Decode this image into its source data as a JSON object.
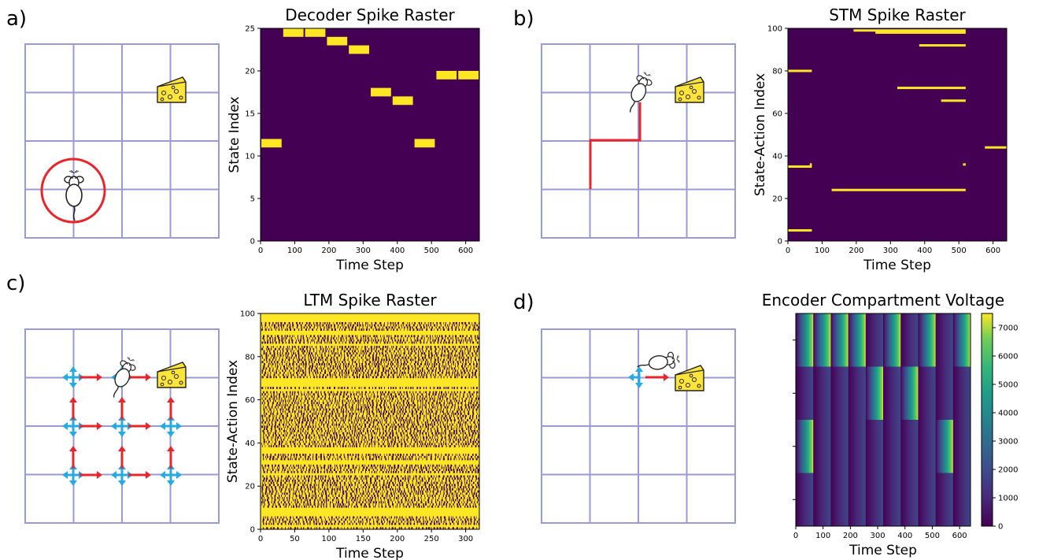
{
  "panels": {
    "a": {
      "label": "a)"
    },
    "b": {
      "label": "b)"
    },
    "c": {
      "label": "c)"
    },
    "d": {
      "label": "d)"
    }
  },
  "colors": {
    "grid": "#9a9ad4",
    "raster_bg": "#440154",
    "raster_spike": "#fde725",
    "path_red": "#e8252b",
    "arrow_blue": "#27a9e1",
    "cheese": "#fde43a"
  },
  "icons": [
    "mouse-icon",
    "cheese-icon"
  ],
  "chart_data": [
    {
      "type": "raster",
      "title": "Decoder Spike Raster",
      "xlabel": "Time Step",
      "ylabel": "State Index",
      "xlim": [
        0,
        640
      ],
      "ylim": [
        0,
        25
      ],
      "xticks": [
        0,
        100,
        200,
        300,
        400,
        500,
        600
      ],
      "yticks": [
        0,
        5,
        10,
        15,
        20,
        25
      ],
      "bin_width": 64,
      "spikes": [
        {
          "x": 0,
          "y": 11
        },
        {
          "x": 64,
          "y": 24
        },
        {
          "x": 128,
          "y": 24
        },
        {
          "x": 192,
          "y": 23
        },
        {
          "x": 256,
          "y": 22
        },
        {
          "x": 320,
          "y": 17
        },
        {
          "x": 384,
          "y": 16
        },
        {
          "x": 448,
          "y": 11
        },
        {
          "x": 512,
          "y": 19
        },
        {
          "x": 576,
          "y": 19
        }
      ]
    },
    {
      "type": "raster",
      "title": "STM Spike Raster",
      "xlabel": "Time Step",
      "ylabel": "State-Action Index",
      "xlim": [
        0,
        640
      ],
      "ylim": [
        0,
        100
      ],
      "xticks": [
        0,
        100,
        200,
        300,
        400,
        500,
        600
      ],
      "yticks": [
        0,
        20,
        40,
        60,
        80,
        100
      ],
      "spikes": [
        {
          "y": 99,
          "x_start": 192,
          "x_end": 520
        },
        {
          "y": 98,
          "x_start": 256,
          "x_end": 520
        },
        {
          "y": 92,
          "x_start": 384,
          "x_end": 520
        },
        {
          "y": 80,
          "x_start": 0,
          "x_end": 70
        },
        {
          "y": 72,
          "x_start": 320,
          "x_end": 520
        },
        {
          "y": 66,
          "x_start": 448,
          "x_end": 520
        },
        {
          "y": 44,
          "x_start": 576,
          "x_end": 640
        },
        {
          "y": 36,
          "x_start": 64,
          "x_end": 70
        },
        {
          "y": 36,
          "x_start": 512,
          "x_end": 520
        },
        {
          "y": 35,
          "x_start": 0,
          "x_end": 70
        },
        {
          "y": 24,
          "x_start": 128,
          "x_end": 520
        },
        {
          "y": 5,
          "x_start": 0,
          "x_end": 70
        }
      ]
    },
    {
      "type": "raster",
      "title": "LTM Spike Raster",
      "xlabel": "Time Step",
      "ylabel": "State-Action Index",
      "xlim": [
        0,
        320
      ],
      "ylim": [
        0,
        100
      ],
      "xticks": [
        0,
        50,
        100,
        150,
        200,
        250,
        300
      ],
      "yticks": [
        0,
        20,
        40,
        60,
        80,
        100
      ],
      "pattern": "dense",
      "dense_rows": [
        1,
        6,
        7,
        8,
        9,
        25,
        30,
        31,
        35,
        36,
        37,
        64,
        66,
        67,
        68,
        69,
        85,
        90,
        91,
        96,
        97,
        98,
        99
      ]
    },
    {
      "type": "heatmap",
      "title": "Encoder Compartment Voltage",
      "xlabel": "Time Step",
      "xlim": [
        0,
        640
      ],
      "xticks": [
        0,
        100,
        200,
        300,
        400,
        500,
        600
      ],
      "rows": 4,
      "segment_width": 64,
      "segments": 10,
      "peak_rows_top_to_bottom": [
        0,
        0,
        0,
        0,
        1,
        0,
        1,
        0,
        2,
        0
      ],
      "peak_segment_third_row": [
        0,
        8
      ],
      "colorbar": {
        "min": 0,
        "max": 7500,
        "ticks": [
          0,
          1000,
          2000,
          3000,
          4000,
          5000,
          6000,
          7000
        ]
      }
    }
  ]
}
